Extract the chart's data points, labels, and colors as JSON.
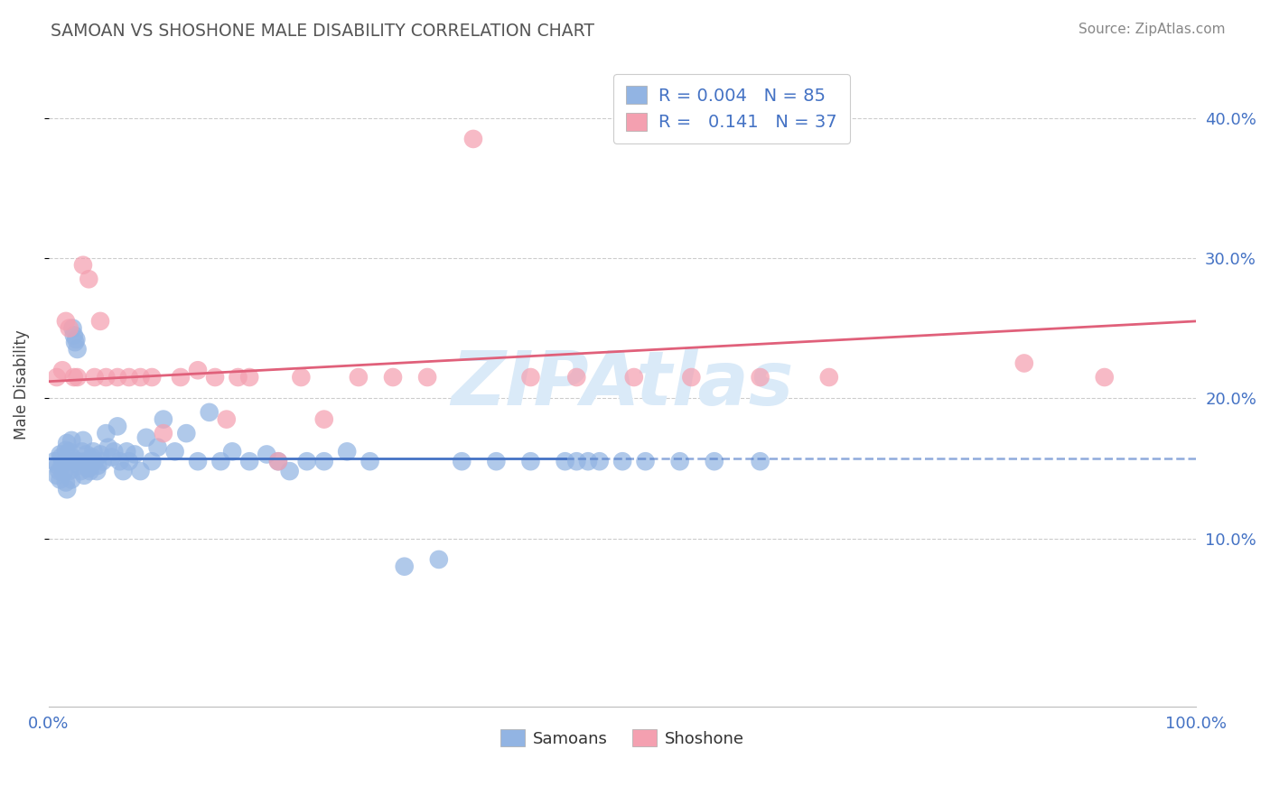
{
  "title": "SAMOAN VS SHOSHONE MALE DISABILITY CORRELATION CHART",
  "source": "Source: ZipAtlas.com",
  "ylabel": "Male Disability",
  "xlim": [
    0.0,
    1.0
  ],
  "ylim": [
    -0.02,
    0.44
  ],
  "yticks": [
    0.1,
    0.2,
    0.3,
    0.4
  ],
  "ytick_labels": [
    "10.0%",
    "20.0%",
    "30.0%",
    "40.0%"
  ],
  "samoans_R": "0.004",
  "samoans_N": "85",
  "shoshone_R": "0.141",
  "shoshone_N": "37",
  "samoans_color": "#92b4e3",
  "shoshone_color": "#f4a0b0",
  "samoans_line_color": "#4472c4",
  "shoshone_line_color": "#e0607a",
  "background_color": "#ffffff",
  "text_color": "#4472c4",
  "title_color": "#555555",
  "source_color": "#888888",
  "watermark_color": "#daeaf8",
  "samoans_x": [
    0.005,
    0.007,
    0.008,
    0.009,
    0.01,
    0.01,
    0.011,
    0.012,
    0.013,
    0.015,
    0.015,
    0.016,
    0.016,
    0.017,
    0.018,
    0.018,
    0.019,
    0.02,
    0.02,
    0.02,
    0.021,
    0.022,
    0.023,
    0.024,
    0.025,
    0.026,
    0.027,
    0.028,
    0.029,
    0.03,
    0.031,
    0.032,
    0.033,
    0.035,
    0.036,
    0.038,
    0.039,
    0.04,
    0.042,
    0.043,
    0.045,
    0.047,
    0.05,
    0.052,
    0.055,
    0.057,
    0.06,
    0.062,
    0.065,
    0.068,
    0.07,
    0.075,
    0.08,
    0.085,
    0.09,
    0.095,
    0.1,
    0.11,
    0.12,
    0.13,
    0.14,
    0.15,
    0.16,
    0.175,
    0.19,
    0.2,
    0.21,
    0.225,
    0.24,
    0.26,
    0.28,
    0.31,
    0.34,
    0.36,
    0.39,
    0.42,
    0.45,
    0.46,
    0.47,
    0.48,
    0.5,
    0.52,
    0.55,
    0.58,
    0.62
  ],
  "samoans_y": [
    0.155,
    0.145,
    0.152,
    0.148,
    0.16,
    0.142,
    0.158,
    0.153,
    0.147,
    0.163,
    0.14,
    0.168,
    0.135,
    0.155,
    0.162,
    0.148,
    0.155,
    0.17,
    0.142,
    0.158,
    0.25,
    0.245,
    0.24,
    0.242,
    0.235,
    0.155,
    0.152,
    0.148,
    0.162,
    0.17,
    0.145,
    0.155,
    0.16,
    0.15,
    0.148,
    0.158,
    0.162,
    0.155,
    0.148,
    0.152,
    0.16,
    0.155,
    0.175,
    0.165,
    0.158,
    0.162,
    0.18,
    0.155,
    0.148,
    0.162,
    0.155,
    0.16,
    0.148,
    0.172,
    0.155,
    0.165,
    0.185,
    0.162,
    0.175,
    0.155,
    0.19,
    0.155,
    0.162,
    0.155,
    0.16,
    0.155,
    0.148,
    0.155,
    0.155,
    0.162,
    0.155,
    0.08,
    0.085,
    0.155,
    0.155,
    0.155,
    0.155,
    0.155,
    0.155,
    0.155,
    0.155,
    0.155,
    0.155,
    0.155,
    0.155
  ],
  "shoshone_x": [
    0.007,
    0.012,
    0.015,
    0.018,
    0.022,
    0.025,
    0.03,
    0.035,
    0.04,
    0.045,
    0.05,
    0.06,
    0.07,
    0.08,
    0.09,
    0.1,
    0.115,
    0.13,
    0.145,
    0.155,
    0.165,
    0.175,
    0.2,
    0.22,
    0.24,
    0.27,
    0.3,
    0.33,
    0.37,
    0.42,
    0.46,
    0.51,
    0.56,
    0.62,
    0.68,
    0.85,
    0.92
  ],
  "shoshone_y": [
    0.215,
    0.22,
    0.255,
    0.25,
    0.215,
    0.215,
    0.295,
    0.285,
    0.215,
    0.255,
    0.215,
    0.215,
    0.215,
    0.215,
    0.215,
    0.175,
    0.215,
    0.22,
    0.215,
    0.185,
    0.215,
    0.215,
    0.155,
    0.215,
    0.185,
    0.215,
    0.215,
    0.215,
    0.385,
    0.215,
    0.215,
    0.215,
    0.215,
    0.215,
    0.215,
    0.225,
    0.215
  ],
  "samoans_line_x0": 0.0,
  "samoans_line_y0": 0.157,
  "samoans_line_x1": 0.45,
  "samoans_line_y1": 0.157,
  "samoans_line_dash_x0": 0.45,
  "samoans_line_dash_y0": 0.157,
  "samoans_line_dash_x1": 1.0,
  "samoans_line_dash_y1": 0.157,
  "shoshone_line_x0": 0.0,
  "shoshone_line_y0": 0.212,
  "shoshone_line_x1": 1.0,
  "shoshone_line_y1": 0.255
}
